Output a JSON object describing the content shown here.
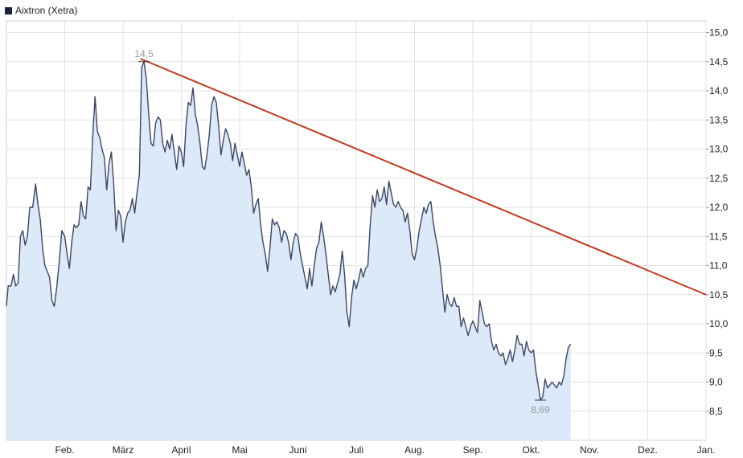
{
  "legend": {
    "label": "Aixtron (Xetra)",
    "swatch_color": "#1a1f3a"
  },
  "chart_data": {
    "type": "area",
    "title": "",
    "xlabel": "",
    "ylabel": "",
    "ylim": [
      8.0,
      15.2
    ],
    "y_ticks": [
      "8,5",
      "9,0",
      "9,5",
      "10,0",
      "10,5",
      "11,0",
      "11,5",
      "12,0",
      "12,5",
      "13,0",
      "13,5",
      "14,0",
      "14,5",
      "15,0"
    ],
    "y_tick_values": [
      8.5,
      9.0,
      9.5,
      10.0,
      10.5,
      11.0,
      11.5,
      12.0,
      12.5,
      13.0,
      13.5,
      14.0,
      14.5,
      15.0
    ],
    "x_range": [
      0,
      12.0
    ],
    "x_ticks": [
      {
        "label": "Feb.",
        "x": 1
      },
      {
        "label": "März",
        "x": 2
      },
      {
        "label": "April",
        "x": 3
      },
      {
        "label": "Mai",
        "x": 4
      },
      {
        "label": "Juni",
        "x": 5
      },
      {
        "label": "Juli",
        "x": 6
      },
      {
        "label": "Aug.",
        "x": 7
      },
      {
        "label": "Sep.",
        "x": 8
      },
      {
        "label": "Okt.",
        "x": 9
      },
      {
        "label": "Nov.",
        "x": 10
      },
      {
        "label": "Dez.",
        "x": 11
      },
      {
        "label": "Jan.",
        "x": 12
      }
    ],
    "grid": true,
    "legend_position": "top-left",
    "colors": {
      "line": "#3c4660",
      "fill": "#dce9f9",
      "trend": "#c13a1e",
      "grid": "#e2e2e2",
      "annotation": "#999999"
    },
    "series": [
      {
        "points": [
          [
            0.0,
            10.3
          ],
          [
            0.03,
            10.65
          ],
          [
            0.08,
            10.65
          ],
          [
            0.12,
            10.85
          ],
          [
            0.16,
            10.65
          ],
          [
            0.2,
            10.7
          ],
          [
            0.24,
            11.5
          ],
          [
            0.28,
            11.6
          ],
          [
            0.32,
            11.35
          ],
          [
            0.36,
            11.5
          ],
          [
            0.4,
            12.0
          ],
          [
            0.45,
            12.0
          ],
          [
            0.5,
            12.4
          ],
          [
            0.54,
            12.05
          ],
          [
            0.58,
            11.8
          ],
          [
            0.62,
            11.3
          ],
          [
            0.66,
            11.0
          ],
          [
            0.7,
            10.9
          ],
          [
            0.74,
            10.8
          ],
          [
            0.78,
            10.4
          ],
          [
            0.82,
            10.3
          ],
          [
            0.86,
            10.6
          ],
          [
            0.9,
            11.0
          ],
          [
            0.95,
            11.6
          ],
          [
            1.0,
            11.5
          ],
          [
            1.04,
            11.2
          ],
          [
            1.08,
            10.95
          ],
          [
            1.12,
            11.4
          ],
          [
            1.16,
            11.7
          ],
          [
            1.2,
            11.65
          ],
          [
            1.24,
            11.7
          ],
          [
            1.28,
            12.1
          ],
          [
            1.32,
            11.85
          ],
          [
            1.36,
            11.8
          ],
          [
            1.4,
            12.35
          ],
          [
            1.44,
            12.3
          ],
          [
            1.48,
            13.2
          ],
          [
            1.52,
            13.9
          ],
          [
            1.56,
            13.3
          ],
          [
            1.6,
            13.2
          ],
          [
            1.64,
            13.0
          ],
          [
            1.68,
            12.85
          ],
          [
            1.72,
            12.3
          ],
          [
            1.76,
            12.75
          ],
          [
            1.8,
            12.95
          ],
          [
            1.84,
            12.4
          ],
          [
            1.88,
            11.6
          ],
          [
            1.92,
            11.95
          ],
          [
            1.96,
            11.85
          ],
          [
            2.0,
            11.4
          ],
          [
            2.04,
            11.75
          ],
          [
            2.08,
            11.9
          ],
          [
            2.12,
            11.95
          ],
          [
            2.16,
            12.15
          ],
          [
            2.2,
            11.9
          ],
          [
            2.24,
            12.25
          ],
          [
            2.28,
            12.55
          ],
          [
            2.32,
            14.4
          ],
          [
            2.36,
            14.5
          ],
          [
            2.4,
            14.2
          ],
          [
            2.44,
            13.6
          ],
          [
            2.48,
            13.1
          ],
          [
            2.52,
            13.05
          ],
          [
            2.56,
            13.45
          ],
          [
            2.6,
            13.55
          ],
          [
            2.64,
            13.5
          ],
          [
            2.68,
            13.1
          ],
          [
            2.72,
            12.95
          ],
          [
            2.76,
            13.15
          ],
          [
            2.8,
            13.0
          ],
          [
            2.84,
            13.25
          ],
          [
            2.88,
            12.95
          ],
          [
            2.92,
            12.65
          ],
          [
            2.96,
            13.05
          ],
          [
            3.0,
            12.95
          ],
          [
            3.04,
            12.7
          ],
          [
            3.08,
            13.4
          ],
          [
            3.12,
            13.8
          ],
          [
            3.16,
            13.75
          ],
          [
            3.2,
            14.05
          ],
          [
            3.24,
            13.6
          ],
          [
            3.28,
            13.4
          ],
          [
            3.32,
            13.1
          ],
          [
            3.36,
            12.7
          ],
          [
            3.4,
            12.65
          ],
          [
            3.44,
            12.9
          ],
          [
            3.48,
            13.25
          ],
          [
            3.52,
            13.75
          ],
          [
            3.56,
            13.9
          ],
          [
            3.6,
            13.8
          ],
          [
            3.64,
            13.4
          ],
          [
            3.68,
            12.9
          ],
          [
            3.72,
            13.15
          ],
          [
            3.76,
            13.35
          ],
          [
            3.8,
            13.25
          ],
          [
            3.84,
            13.1
          ],
          [
            3.88,
            12.8
          ],
          [
            3.92,
            13.1
          ],
          [
            3.96,
            12.9
          ],
          [
            4.0,
            12.7
          ],
          [
            4.04,
            12.95
          ],
          [
            4.08,
            12.75
          ],
          [
            4.12,
            12.55
          ],
          [
            4.16,
            12.65
          ],
          [
            4.2,
            12.35
          ],
          [
            4.24,
            11.9
          ],
          [
            4.28,
            12.05
          ],
          [
            4.32,
            12.15
          ],
          [
            4.36,
            11.7
          ],
          [
            4.4,
            11.4
          ],
          [
            4.44,
            11.2
          ],
          [
            4.48,
            10.9
          ],
          [
            4.52,
            11.3
          ],
          [
            4.56,
            11.8
          ],
          [
            4.6,
            11.7
          ],
          [
            4.64,
            11.75
          ],
          [
            4.68,
            11.65
          ],
          [
            4.72,
            11.4
          ],
          [
            4.76,
            11.6
          ],
          [
            4.8,
            11.55
          ],
          [
            4.84,
            11.4
          ],
          [
            4.88,
            11.1
          ],
          [
            4.92,
            11.4
          ],
          [
            4.96,
            11.55
          ],
          [
            5.0,
            11.5
          ],
          [
            5.04,
            11.2
          ],
          [
            5.08,
            11.0
          ],
          [
            5.12,
            10.8
          ],
          [
            5.16,
            10.6
          ],
          [
            5.2,
            10.95
          ],
          [
            5.24,
            10.65
          ],
          [
            5.28,
            11.0
          ],
          [
            5.32,
            11.3
          ],
          [
            5.36,
            11.4
          ],
          [
            5.4,
            11.75
          ],
          [
            5.44,
            11.5
          ],
          [
            5.48,
            11.2
          ],
          [
            5.52,
            10.85
          ],
          [
            5.56,
            10.5
          ],
          [
            5.6,
            10.65
          ],
          [
            5.64,
            10.55
          ],
          [
            5.68,
            10.7
          ],
          [
            5.72,
            10.85
          ],
          [
            5.76,
            11.25
          ],
          [
            5.8,
            10.85
          ],
          [
            5.84,
            10.2
          ],
          [
            5.88,
            9.95
          ],
          [
            5.92,
            10.45
          ],
          [
            5.96,
            10.75
          ],
          [
            6.0,
            10.6
          ],
          [
            6.04,
            10.75
          ],
          [
            6.08,
            10.95
          ],
          [
            6.12,
            10.8
          ],
          [
            6.16,
            10.95
          ],
          [
            6.2,
            11.0
          ],
          [
            6.24,
            11.7
          ],
          [
            6.28,
            12.2
          ],
          [
            6.32,
            12.0
          ],
          [
            6.36,
            12.3
          ],
          [
            6.4,
            12.1
          ],
          [
            6.44,
            12.15
          ],
          [
            6.48,
            12.35
          ],
          [
            6.52,
            12.05
          ],
          [
            6.56,
            12.45
          ],
          [
            6.6,
            12.25
          ],
          [
            6.64,
            12.05
          ],
          [
            6.68,
            12.0
          ],
          [
            6.72,
            12.1
          ],
          [
            6.76,
            12.0
          ],
          [
            6.8,
            11.95
          ],
          [
            6.84,
            11.75
          ],
          [
            6.88,
            11.9
          ],
          [
            6.92,
            11.6
          ],
          [
            6.96,
            11.2
          ],
          [
            7.0,
            11.1
          ],
          [
            7.04,
            11.3
          ],
          [
            7.08,
            11.6
          ],
          [
            7.12,
            11.8
          ],
          [
            7.16,
            12.0
          ],
          [
            7.2,
            11.9
          ],
          [
            7.24,
            12.05
          ],
          [
            7.28,
            12.1
          ],
          [
            7.32,
            11.75
          ],
          [
            7.36,
            11.5
          ],
          [
            7.4,
            11.3
          ],
          [
            7.44,
            11.0
          ],
          [
            7.48,
            10.6
          ],
          [
            7.52,
            10.2
          ],
          [
            7.56,
            10.5
          ],
          [
            7.6,
            10.35
          ],
          [
            7.64,
            10.3
          ],
          [
            7.68,
            10.45
          ],
          [
            7.72,
            10.3
          ],
          [
            7.76,
            10.3
          ],
          [
            7.8,
            9.95
          ],
          [
            7.84,
            10.1
          ],
          [
            7.88,
            9.95
          ],
          [
            7.92,
            9.8
          ],
          [
            7.96,
            9.95
          ],
          [
            8.0,
            10.05
          ],
          [
            8.04,
            9.95
          ],
          [
            8.08,
            9.85
          ],
          [
            8.12,
            10.4
          ],
          [
            8.16,
            10.2
          ],
          [
            8.2,
            10.0
          ],
          [
            8.24,
            9.95
          ],
          [
            8.28,
            10.0
          ],
          [
            8.32,
            9.7
          ],
          [
            8.36,
            9.55
          ],
          [
            8.4,
            9.65
          ],
          [
            8.44,
            9.5
          ],
          [
            8.48,
            9.45
          ],
          [
            8.52,
            9.5
          ],
          [
            8.56,
            9.3
          ],
          [
            8.6,
            9.4
          ],
          [
            8.64,
            9.55
          ],
          [
            8.68,
            9.35
          ],
          [
            8.72,
            9.55
          ],
          [
            8.76,
            9.8
          ],
          [
            8.8,
            9.65
          ],
          [
            8.84,
            9.65
          ],
          [
            8.88,
            9.45
          ],
          [
            8.92,
            9.7
          ],
          [
            8.96,
            9.55
          ],
          [
            9.0,
            9.5
          ],
          [
            9.04,
            9.55
          ],
          [
            9.08,
            9.2
          ],
          [
            9.12,
            8.95
          ],
          [
            9.16,
            8.69
          ],
          [
            9.2,
            8.75
          ],
          [
            9.24,
            9.05
          ],
          [
            9.28,
            8.9
          ],
          [
            9.32,
            8.95
          ],
          [
            9.36,
            9.0
          ],
          [
            9.4,
            8.95
          ],
          [
            9.44,
            8.9
          ],
          [
            9.48,
            9.0
          ],
          [
            9.52,
            8.95
          ],
          [
            9.56,
            9.1
          ],
          [
            9.6,
            9.4
          ],
          [
            9.64,
            9.6
          ],
          [
            9.68,
            9.65
          ]
        ]
      }
    ],
    "trend_line": {
      "from": [
        2.3,
        14.55
      ],
      "to": [
        12.0,
        10.5
      ]
    },
    "annotations": [
      {
        "text": "14,5",
        "x": 2.36,
        "y": 14.5,
        "position": "above"
      },
      {
        "text": "8,69",
        "x": 9.16,
        "y": 8.69,
        "position": "below"
      }
    ]
  }
}
